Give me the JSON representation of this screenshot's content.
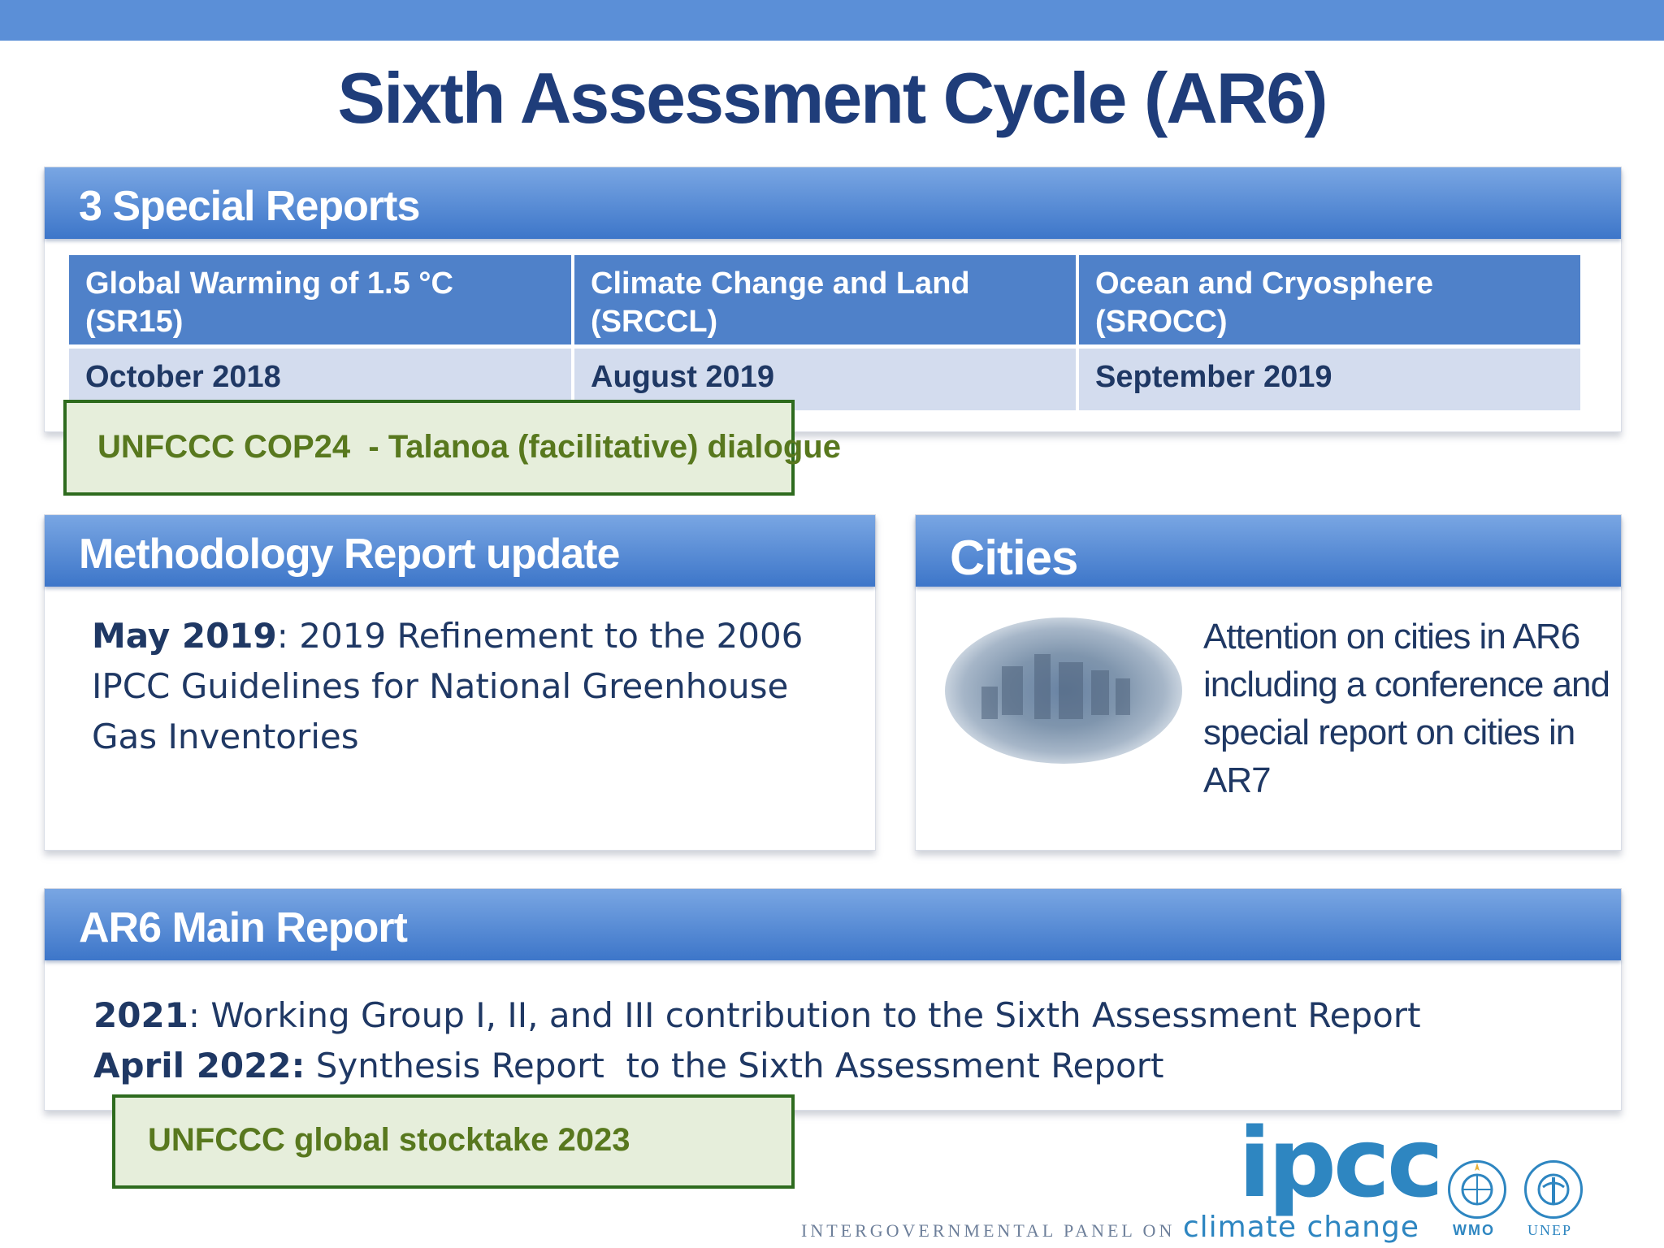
{
  "title": "Sixth Assessment Cycle (AR6)",
  "special_reports": {
    "heading": "3 Special Reports",
    "reports": [
      {
        "name": "Global Warming of 1.5 °C",
        "code": "(SR15)",
        "date": "October 2018"
      },
      {
        "name": "Climate Change and Land",
        "code": "(SRCCL)",
        "date": "August 2019"
      },
      {
        "name": "Ocean and Cryosphere",
        "code": "(SROCC)",
        "date": "September 2019"
      }
    ],
    "milestone": "UNFCCC COP24  - Talanoa (facilitative) dialogue"
  },
  "methodology": {
    "heading": "Methodology Report update",
    "date": "May 2019",
    "text": ": 2019 Refinement to the 2006 IPCC Guidelines for National Greenhouse Gas Inventories"
  },
  "cities": {
    "heading": "Cities",
    "text": "Attention on cities in AR6 including a conference and special report on cities in AR7"
  },
  "main_report": {
    "heading": "AR6 Main Report",
    "lines": [
      {
        "date": "2021",
        "text": ": Working Group I, II, and III contribution to the Sixth Assessment Report"
      },
      {
        "date": "April 2022:",
        "text": " Synthesis Report  to the Sixth Assessment Report"
      }
    ],
    "milestone": "UNFCCC global stocktake 2023"
  },
  "logos": {
    "ipcc": "ipcc",
    "ipcc_tagline_prefix": "INTERGOVERNMENTAL PANEL ON",
    "ipcc_tagline_suffix": "climate change",
    "wmo": "WMO",
    "unep": "UNEP"
  }
}
